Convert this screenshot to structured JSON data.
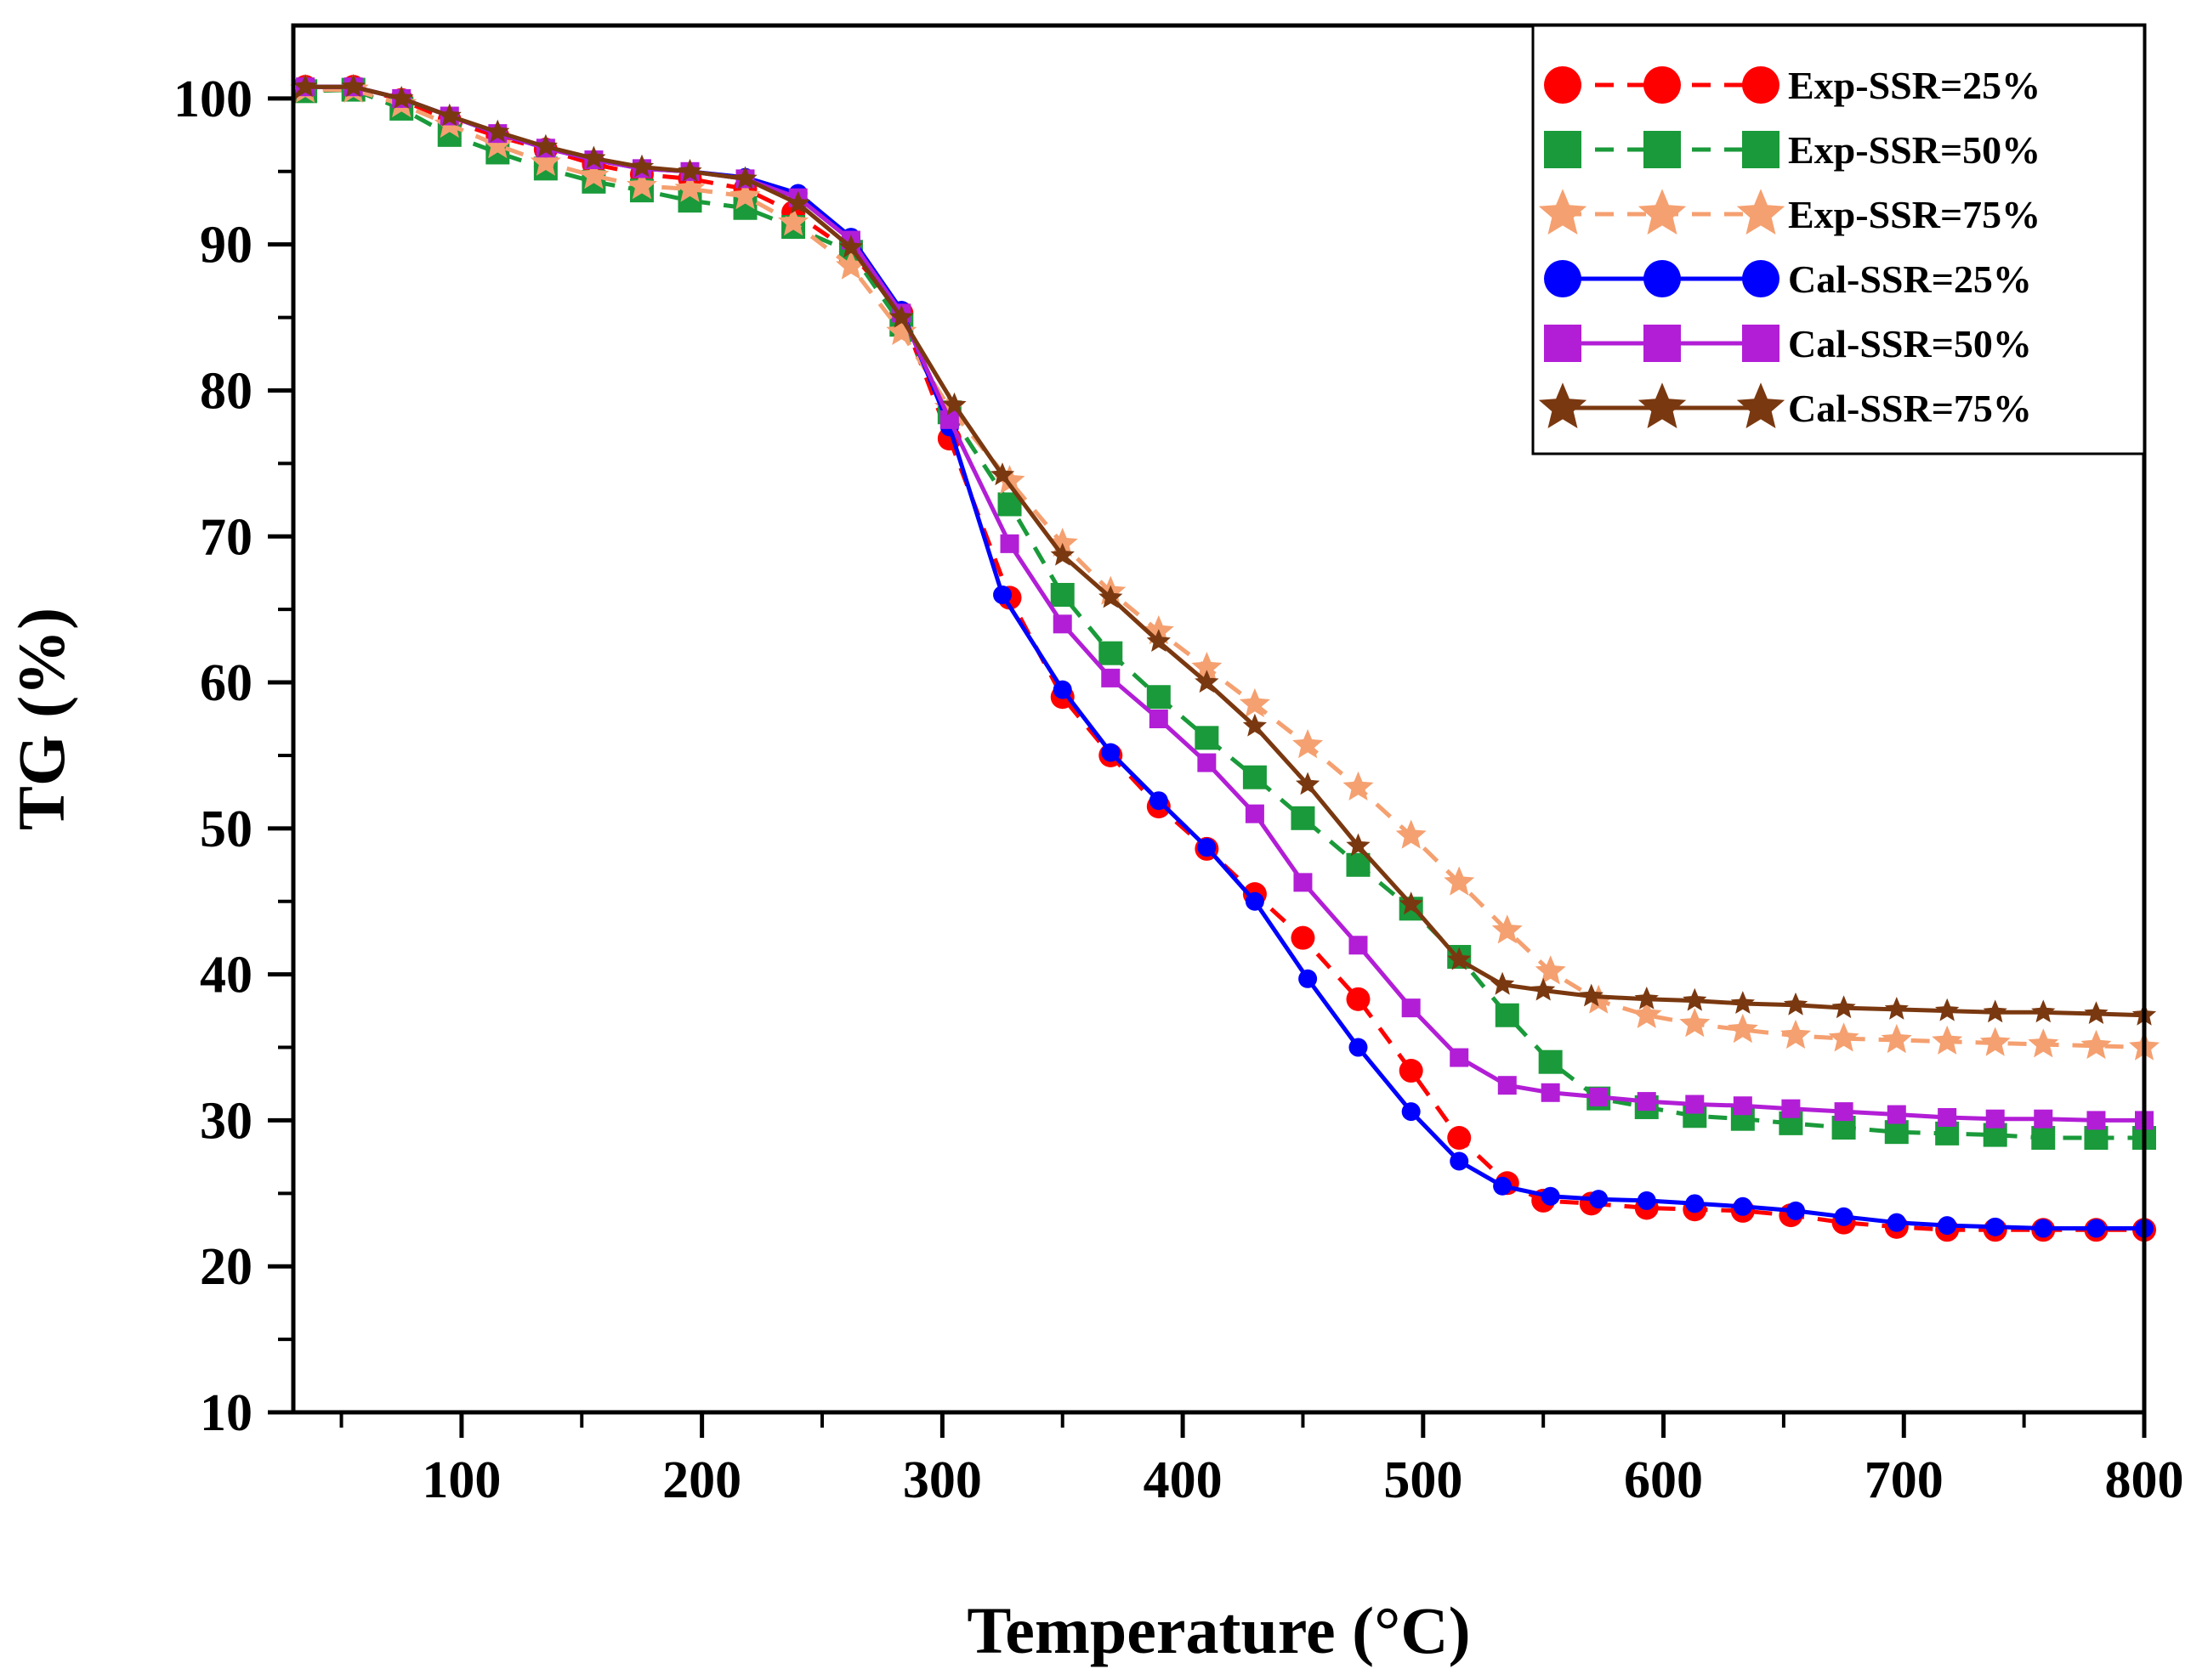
{
  "chart_data": {
    "type": "line",
    "xlabel": "Temperature (°C)",
    "ylabel": "TG (%)",
    "xlim": [
      30,
      800
    ],
    "ylim": [
      10,
      105
    ],
    "xticks": [
      100,
      200,
      300,
      400,
      500,
      600,
      700,
      800
    ],
    "yticks": [
      10,
      20,
      30,
      40,
      50,
      60,
      70,
      80,
      90,
      100
    ],
    "legend_position": "top-right",
    "series": [
      {
        "name": "Exp-SSR=25%",
        "color": "#ff0000",
        "line": "dashed",
        "marker": "circle",
        "x": [
          30,
          35,
          55,
          75,
          95,
          115,
          135,
          155,
          175,
          195,
          218,
          238,
          262,
          283,
          303,
          328,
          350,
          370,
          390,
          410,
          430,
          450,
          473,
          495,
          515,
          535,
          550,
          570,
          593,
          613,
          633,
          653,
          675,
          697,
          718,
          738,
          758,
          780,
          800
        ],
        "y": [
          100,
          100.8,
          100.8,
          99.9,
          98.5,
          97.4,
          96.5,
          95.5,
          94.8,
          94.5,
          93.8,
          92.2,
          89.5,
          85.3,
          76.7,
          65.8,
          59,
          55,
          51.5,
          48.6,
          45.5,
          42.5,
          38.3,
          33.4,
          28.8,
          25.7,
          24.5,
          24.3,
          24,
          23.9,
          23.8,
          23.5,
          23,
          22.7,
          22.5,
          22.5,
          22.5,
          22.5,
          22.5
        ]
      },
      {
        "name": "Exp-SSR=50%",
        "color": "#1a9a3a",
        "line": "dashed",
        "marker": "square",
        "x": [
          30,
          35,
          55,
          75,
          95,
          115,
          135,
          155,
          175,
          195,
          218,
          238,
          262,
          283,
          303,
          328,
          350,
          370,
          390,
          410,
          430,
          450,
          473,
          495,
          515,
          535,
          553,
          573,
          593,
          613,
          633,
          653,
          675,
          697,
          718,
          738,
          758,
          780,
          800
        ],
        "y": [
          100,
          100.5,
          100.6,
          99.3,
          97.5,
          96.3,
          95.2,
          94.3,
          93.7,
          93,
          92.5,
          91.2,
          89.5,
          84.5,
          78.5,
          72.2,
          66,
          62,
          59,
          56.2,
          53.5,
          50.7,
          47.5,
          44.5,
          41.2,
          37.2,
          34,
          31.5,
          30.9,
          30.3,
          30.1,
          29.8,
          29.5,
          29.2,
          29.1,
          29,
          28.8,
          28.8,
          28.8
        ]
      },
      {
        "name": "Exp-SSR=75%",
        "color": "#f5a070",
        "line": "dashed",
        "marker": "star",
        "x": [
          30,
          35,
          55,
          75,
          95,
          115,
          135,
          155,
          175,
          195,
          218,
          238,
          262,
          283,
          303,
          328,
          350,
          370,
          390,
          410,
          430,
          452,
          473,
          495,
          515,
          535,
          553,
          573,
          593,
          613,
          633,
          655,
          675,
          697,
          718,
          738,
          758,
          780,
          800
        ],
        "y": [
          100,
          100.6,
          100.6,
          99.6,
          98.2,
          96.8,
          95.6,
          94.7,
          94,
          93.8,
          93.3,
          91.5,
          88.5,
          84,
          78.8,
          73.8,
          69.5,
          66.2,
          63.5,
          61,
          58.5,
          55.7,
          52.8,
          49.5,
          46.3,
          43,
          40.2,
          38.2,
          37.2,
          36.6,
          36.2,
          35.8,
          35.6,
          35.5,
          35.4,
          35.3,
          35.2,
          35.1,
          35
        ]
      },
      {
        "name": "Cal-SSR=25%",
        "color": "#0000ff",
        "line": "solid",
        "marker": "circle",
        "x": [
          30,
          35,
          55,
          75,
          95,
          115,
          135,
          155,
          175,
          195,
          218,
          240,
          262,
          283,
          303,
          325,
          350,
          370,
          390,
          410,
          430,
          452,
          473,
          495,
          515,
          533,
          553,
          573,
          593,
          613,
          633,
          655,
          675,
          697,
          718,
          738,
          758,
          780,
          800
        ],
        "y": [
          100,
          100.8,
          100.8,
          100,
          98.8,
          97.6,
          96.6,
          95.8,
          95.2,
          95,
          94.6,
          93.5,
          90.5,
          85.5,
          77.5,
          66,
          59.5,
          55.2,
          51.9,
          48.7,
          45,
          39.7,
          35,
          30.6,
          27.2,
          25.5,
          24.8,
          24.6,
          24.5,
          24.3,
          24.1,
          23.8,
          23.4,
          23,
          22.8,
          22.7,
          22.6,
          22.6,
          22.6
        ]
      },
      {
        "name": "Cal-SSR=50%",
        "color": "#b21ed6",
        "line": "solid",
        "marker": "square",
        "x": [
          30,
          35,
          55,
          75,
          95,
          115,
          135,
          155,
          175,
          195,
          218,
          240,
          262,
          283,
          303,
          328,
          350,
          370,
          390,
          410,
          430,
          450,
          473,
          495,
          515,
          535,
          553,
          573,
          593,
          613,
          633,
          653,
          675,
          697,
          718,
          738,
          758,
          780,
          800
        ],
        "y": [
          100,
          100.8,
          100.8,
          100,
          98.8,
          97.6,
          96.6,
          95.8,
          95.2,
          95,
          94.5,
          93.2,
          90.3,
          85.3,
          78,
          69.5,
          64,
          60.3,
          57.5,
          54.5,
          51,
          46.3,
          42,
          37.7,
          34.3,
          32.4,
          31.9,
          31.6,
          31.3,
          31.1,
          31,
          30.8,
          30.6,
          30.4,
          30.2,
          30.1,
          30.1,
          30,
          30
        ]
      },
      {
        "name": "Cal-SSR=75%",
        "color": "#7a3810",
        "line": "solid",
        "marker": "star",
        "x": [
          30,
          35,
          55,
          75,
          95,
          115,
          135,
          155,
          175,
          195,
          218,
          240,
          262,
          283,
          305,
          325,
          350,
          370,
          390,
          410,
          430,
          452,
          473,
          495,
          515,
          533,
          550,
          570,
          593,
          613,
          633,
          655,
          675,
          697,
          718,
          738,
          758,
          780,
          800
        ],
        "y": [
          100,
          100.8,
          100.8,
          100,
          98.8,
          97.7,
          96.7,
          95.9,
          95.3,
          95,
          94.5,
          92.8,
          89.8,
          85,
          79,
          74.2,
          68.7,
          65.8,
          62.8,
          60,
          57,
          53,
          48.8,
          44.8,
          41,
          39.3,
          38.9,
          38.5,
          38.3,
          38.2,
          38,
          37.9,
          37.7,
          37.6,
          37.5,
          37.4,
          37.4,
          37.3,
          37.2
        ]
      }
    ]
  }
}
